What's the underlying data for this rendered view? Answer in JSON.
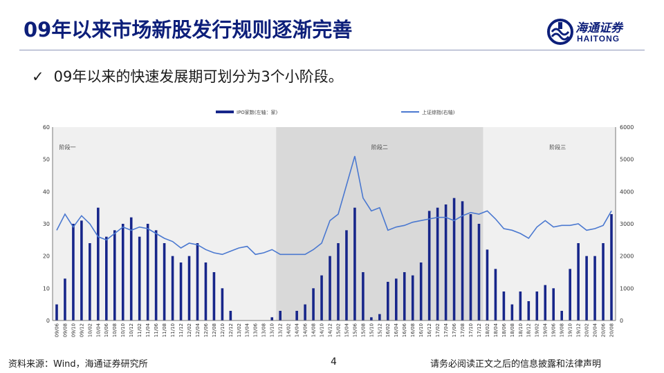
{
  "header": {
    "title": "09年以来市场新股发行规则逐渐完善",
    "logo_cn": "海通证券",
    "logo_en": "HAITONG"
  },
  "subtitle": {
    "check": "✓",
    "text": "09年以来的快速发展期可划分为3个小阶段。"
  },
  "footer": {
    "source": "资料来源：Wind，海通证券研究所",
    "page": "4",
    "disclaimer": "请务必阅读正文之后的信息披露和法律声明"
  },
  "chart_data": {
    "type": "bar+line",
    "legend": [
      "IPO家数(左轴：家)",
      "上证综指(右轴)"
    ],
    "x": [
      "09/06",
      "09/08",
      "09/10",
      "09/12",
      "10/02",
      "10/04",
      "10/06",
      "10/08",
      "10/10",
      "10/12",
      "11/02",
      "11/04",
      "11/06",
      "11/08",
      "11/10",
      "11/12",
      "12/02",
      "12/04",
      "12/06",
      "12/08",
      "12/10",
      "12/12",
      "13/02",
      "13/04",
      "13/06",
      "13/08",
      "13/10",
      "13/12",
      "14/02",
      "14/04",
      "14/06",
      "14/08",
      "14/10",
      "14/12",
      "15/02",
      "15/04",
      "15/06",
      "15/08",
      "15/10",
      "15/12",
      "16/02",
      "16/04",
      "16/06",
      "16/08",
      "16/10",
      "16/12",
      "17/02",
      "17/04",
      "17/06",
      "17/08",
      "17/10",
      "17/12",
      "18/02",
      "18/04",
      "18/06",
      "18/08",
      "18/10",
      "18/12",
      "19/02",
      "19/04",
      "19/06",
      "19/08",
      "19/10",
      "19/12",
      "20/02",
      "20/04",
      "20/06",
      "20/08"
    ],
    "ipo_count": [
      5,
      13,
      30,
      31,
      24,
      35,
      26,
      28,
      30,
      32,
      26,
      30,
      28,
      24,
      20,
      18,
      20,
      24,
      18,
      15,
      10,
      3,
      0,
      0,
      0,
      0,
      1,
      3,
      0,
      3,
      5,
      10,
      14,
      20,
      24,
      28,
      35,
      15,
      1,
      2,
      12,
      13,
      15,
      14,
      18,
      34,
      35,
      36,
      38,
      37,
      33,
      30,
      22,
      16,
      9,
      5,
      9,
      6,
      9,
      11,
      10,
      3,
      16,
      24,
      20,
      20,
      24,
      33
    ],
    "sh_index": [
      2800,
      3300,
      2900,
      3250,
      3000,
      2600,
      2500,
      2700,
      2900,
      2800,
      2900,
      2850,
      2700,
      2550,
      2450,
      2250,
      2400,
      2350,
      2200,
      2100,
      2050,
      2150,
      2250,
      2300,
      2050,
      2100,
      2200,
      2050,
      2050,
      2050,
      2050,
      2200,
      2400,
      3100,
      3300,
      4200,
      5100,
      3800,
      3400,
      3500,
      2800,
      2900,
      2950,
      3050,
      3100,
      3150,
      3200,
      3200,
      3100,
      3250,
      3350,
      3300,
      3400,
      3150,
      2850,
      2800,
      2700,
      2550,
      2900,
      3100,
      2900,
      2950,
      2950,
      3000,
      2800,
      2850,
      2950,
      3400
    ],
    "phases": [
      "阶段一",
      "阶段二",
      "阶段三"
    ],
    "left_axis": [
      0,
      10,
      20,
      30,
      40,
      50,
      60
    ],
    "right_axis": [
      0,
      1000,
      2000,
      3000,
      4000,
      5000,
      6000
    ],
    "ylim_left": [
      0,
      60
    ],
    "ylim_right": [
      0,
      6000
    ],
    "colors": {
      "bar": "#17268a",
      "line": "#4a78d0",
      "shade": "#d9d9d9",
      "shade_light": "#f0f0f0"
    }
  }
}
